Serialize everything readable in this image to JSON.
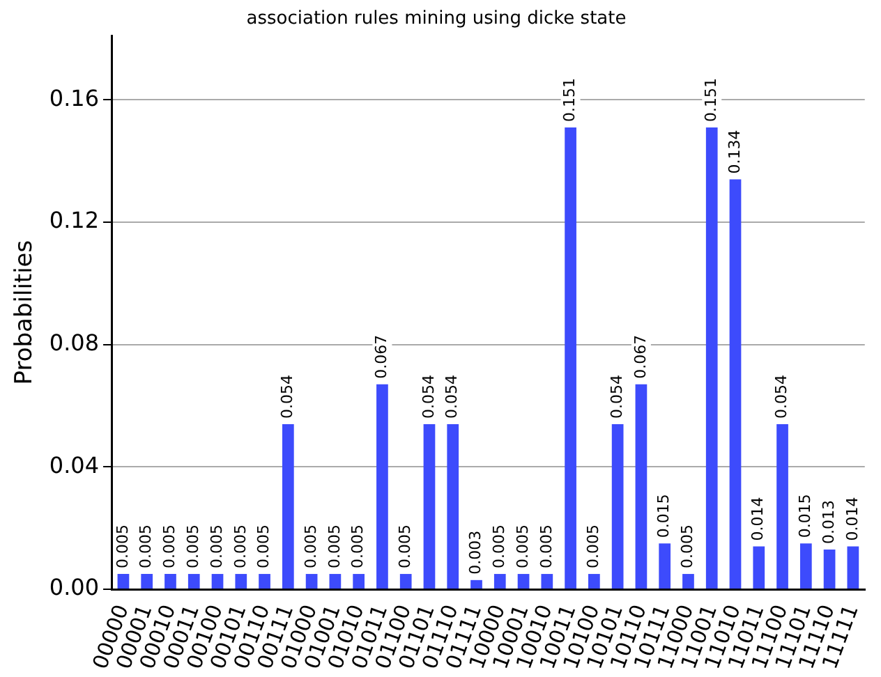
{
  "chart_data": {
    "type": "bar",
    "title": "association rules mining using dicke state",
    "ylabel": "Probabilities",
    "categories": [
      "00000",
      "00001",
      "00010",
      "00011",
      "00100",
      "00101",
      "00110",
      "00111",
      "01000",
      "01001",
      "01010",
      "01011",
      "01100",
      "01101",
      "01110",
      "01111",
      "10000",
      "10001",
      "10010",
      "10011",
      "10100",
      "10101",
      "10110",
      "10111",
      "11000",
      "11001",
      "11010",
      "11011",
      "11100",
      "11101",
      "11110",
      "11111"
    ],
    "values": [
      0.005,
      0.005,
      0.005,
      0.005,
      0.005,
      0.005,
      0.005,
      0.054,
      0.005,
      0.005,
      0.005,
      0.067,
      0.005,
      0.054,
      0.054,
      0.003,
      0.005,
      0.005,
      0.005,
      0.151,
      0.005,
      0.054,
      0.067,
      0.015,
      0.005,
      0.151,
      0.134,
      0.014,
      0.054,
      0.015,
      0.013,
      0.014
    ],
    "color": "#3d4bfc",
    "ylim": [
      0,
      0.181
    ],
    "yticks": [
      {
        "value": 0,
        "label": "0.00"
      },
      {
        "value": 0.04,
        "label": "0.04"
      },
      {
        "value": 0.08,
        "label": "0.08"
      },
      {
        "value": 0.12,
        "label": "0.12"
      },
      {
        "value": 0.16,
        "label": "0.16"
      }
    ],
    "grid": "y",
    "data_labels": true
  }
}
